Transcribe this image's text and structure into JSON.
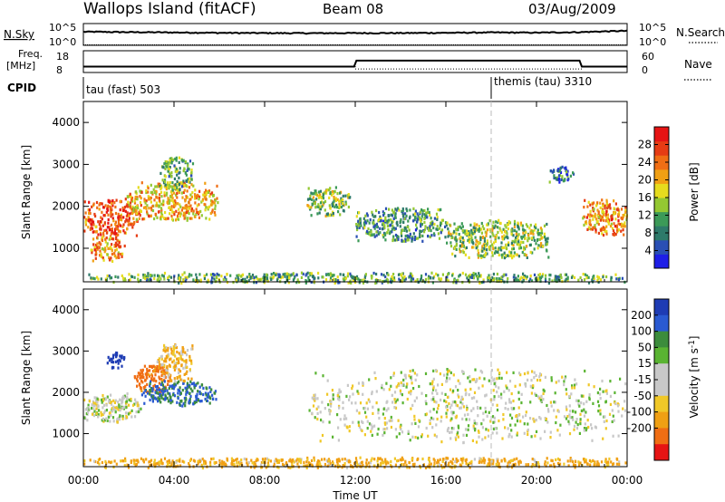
{
  "header": {
    "station": "Wallops Island (fitACF)",
    "beam": "Beam 08",
    "date": "03/Aug/2009"
  },
  "left_labels": {
    "nsky": "N.Sky",
    "freq_top": "Freq.",
    "freq_units": "[MHz]",
    "cpid": "CPID"
  },
  "right_labels": {
    "nsearch": "N.Search",
    "nave": "Nave"
  },
  "noise_axis": {
    "left_top": "10^5",
    "left_bottom": "10^0",
    "right_top": "10^5",
    "right_bottom": "10^0"
  },
  "freq_axis": {
    "left_top": "18",
    "left_bottom": "8",
    "right_top": "60",
    "right_bottom": "0"
  },
  "cpid": {
    "first_label": "tau (fast) 503",
    "second_label": "themis (tau) 3310",
    "switch_time_hours": 18.0
  },
  "x_axis": {
    "title": "Time UT",
    "ticks": [
      "00:00",
      "04:00",
      "08:00",
      "12:00",
      "16:00",
      "20:00",
      "00:00"
    ],
    "tick_hours": [
      0,
      4,
      8,
      12,
      16,
      20,
      24
    ]
  },
  "y_axis": {
    "title": "Slant Range [km]",
    "ticks": [
      "1000",
      "2000",
      "3000",
      "4000"
    ],
    "tick_values": [
      1000,
      2000,
      3000,
      4000
    ],
    "range": [
      200,
      4500
    ]
  },
  "colors": {
    "power": [
      "#1e1ee6",
      "#2a4fb4",
      "#2e7a6a",
      "#3c9a58",
      "#94c832",
      "#e6dc1e",
      "#f0a014",
      "#f06e14",
      "#e63c14",
      "#e61414"
    ],
    "velocity": [
      "#1e3cb4",
      "#2a5ad2",
      "#3c8c3c",
      "#5ab432",
      "#c8c8c8",
      "#c8c8c8",
      "#f0c828",
      "#f0a014",
      "#f06e14",
      "#e61414"
    ]
  },
  "power_colorbar": {
    "title": "Power [dB]",
    "ticks": [
      "4",
      "8",
      "12",
      "16",
      "20",
      "24",
      "28"
    ],
    "tick_values": [
      4,
      8,
      12,
      16,
      20,
      24,
      28
    ],
    "range": [
      0,
      32
    ]
  },
  "velocity_colorbar": {
    "title": "Velocity [m s^-1]",
    "ticks": [
      "200",
      "100",
      "50",
      "15",
      "-15",
      "-50",
      "-100",
      "-200"
    ]
  },
  "chart_data": [
    {
      "type": "line",
      "title": "Wallops Island (fitACF)",
      "subtitle": "Beam 08",
      "series": [
        {
          "name": "N.Sky",
          "x": [
            0,
            2,
            4,
            6,
            8,
            10,
            12,
            14,
            16,
            18,
            20,
            22,
            24
          ],
          "y": [
            1500,
            1200,
            1000,
            800,
            700,
            650,
            700,
            700,
            800,
            1000,
            900,
            1200,
            2500
          ]
        },
        {
          "name": "N.Search",
          "x": [
            0,
            12,
            24
          ],
          "y": [
            1,
            1,
            1
          ]
        }
      ],
      "ylim": [
        1,
        100000
      ],
      "log_y": true
    },
    {
      "type": "line",
      "series": [
        {
          "name": "Freq.",
          "x": [
            0,
            11.95,
            12.05,
            21.9,
            22.0,
            24
          ],
          "y": [
            10.5,
            10.5,
            13.5,
            13.5,
            10.5,
            10.5
          ]
        },
        {
          "name": "Nave",
          "x": [
            0,
            12,
            12,
            22,
            22,
            24
          ],
          "y": [
            16,
            16,
            8,
            8,
            16,
            16
          ]
        }
      ],
      "xlabel": "Time UT"
    },
    {
      "type": "heatmap",
      "title": "Power [dB]",
      "xlabel": "Time UT",
      "ylabel": "Slant Range [km]",
      "xlim": [
        0,
        24
      ],
      "ylim": [
        200,
        4500
      ],
      "zlim": [
        0,
        32
      ],
      "regions": [
        {
          "t": [
            0.0,
            2.4
          ],
          "r": [
            1300,
            2200
          ],
          "value": 26
        },
        {
          "t": [
            0.3,
            1.8
          ],
          "r": [
            700,
            1300
          ],
          "value": 22
        },
        {
          "t": [
            1.8,
            5.9
          ],
          "r": [
            1700,
            2600
          ],
          "value": 20
        },
        {
          "t": [
            3.3,
            4.8
          ],
          "r": [
            2400,
            3200
          ],
          "value": 12
        },
        {
          "t": [
            9.8,
            11.8
          ],
          "r": [
            1800,
            2500
          ],
          "value": 14
        },
        {
          "t": [
            12.0,
            16.0
          ],
          "r": [
            1200,
            2000
          ],
          "value": 10
        },
        {
          "t": [
            16.0,
            20.5
          ],
          "r": [
            800,
            1700
          ],
          "value": 14
        },
        {
          "t": [
            20.5,
            21.6
          ],
          "r": [
            2600,
            3000
          ],
          "value": 8
        },
        {
          "t": [
            22.0,
            24.0
          ],
          "r": [
            1300,
            2200
          ],
          "value": 22
        },
        {
          "t": [
            0.0,
            24.0
          ],
          "r": [
            200,
            450
          ],
          "value": 12
        }
      ]
    },
    {
      "type": "heatmap",
      "title": "Velocity [m s^-1]",
      "xlabel": "Time UT",
      "ylabel": "Slant Range [km]",
      "xlim": [
        0,
        24
      ],
      "ylim": [
        200,
        4500
      ],
      "regions": [
        {
          "t": [
            0.0,
            2.5
          ],
          "r": [
            1300,
            2000
          ],
          "value": 0
        },
        {
          "t": [
            1.0,
            1.8
          ],
          "r": [
            2600,
            3000
          ],
          "value": 200
        },
        {
          "t": [
            2.2,
            3.8
          ],
          "r": [
            2000,
            2700
          ],
          "value": -100
        },
        {
          "t": [
            2.5,
            5.9
          ],
          "r": [
            1700,
            2300
          ],
          "value": 80
        },
        {
          "t": [
            3.2,
            4.8
          ],
          "r": [
            2300,
            3200
          ],
          "value": -30
        },
        {
          "t": [
            9.8,
            24.0
          ],
          "r": [
            800,
            2600
          ],
          "value": 0
        },
        {
          "t": [
            0.0,
            24.0
          ],
          "r": [
            200,
            450
          ],
          "value": -40
        }
      ]
    }
  ]
}
